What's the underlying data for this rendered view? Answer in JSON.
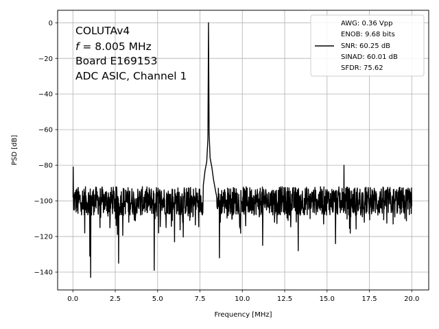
{
  "chart_data": {
    "type": "line",
    "xlabel": "Frequency [MHz]",
    "ylabel": "PSD [dB]",
    "xlim": [
      -0.9,
      21.0
    ],
    "ylim": [
      -150,
      7
    ],
    "xticks": [
      0.0,
      2.5,
      5.0,
      7.5,
      10.0,
      12.5,
      15.0,
      17.5,
      20.0
    ],
    "xtick_labels": [
      "0.0",
      "2.5",
      "5.0",
      "7.5",
      "10.0",
      "12.5",
      "15.0",
      "17.5",
      "20.0"
    ],
    "yticks": [
      0,
      -20,
      -40,
      -60,
      -80,
      -100,
      -120,
      -140
    ],
    "ytick_labels": [
      "0",
      "−20",
      "−40",
      "−60",
      "−80",
      "−100",
      "−120",
      "−140"
    ],
    "grid": true,
    "annotations": [
      {
        "text": "COLUTAv4"
      },
      {
        "text": "f = 8.005 MHz",
        "italic_prefix": "f",
        "rest": " = 8.005 MHz"
      },
      {
        "text": "Board E169153"
      },
      {
        "text": "ADC ASIC, Channel 1"
      }
    ],
    "legend": {
      "placement": "top-right",
      "entries": [
        "AWG: 0.36 Vpp",
        "ENOB: 9.68 bits",
        "SNR: 60.25 dB",
        "SINAD: 60.01 dB",
        "SFDR: 75.62"
      ]
    },
    "series": [
      {
        "color": "#000000",
        "noise_floor_db": -100,
        "points": [
          [
            0.0,
            -98
          ],
          [
            0.02,
            -81
          ],
          [
            0.05,
            -105
          ],
          [
            0.15,
            -96
          ],
          [
            0.3,
            -107
          ],
          [
            0.5,
            -101
          ],
          [
            0.7,
            -118
          ],
          [
            0.9,
            -104
          ],
          [
            1.0,
            -131
          ],
          [
            1.05,
            -143
          ],
          [
            1.1,
            -108
          ],
          [
            1.4,
            -95
          ],
          [
            1.6,
            -115
          ],
          [
            1.9,
            -102
          ],
          [
            2.2,
            -110
          ],
          [
            2.5,
            -99
          ],
          [
            2.7,
            -135
          ],
          [
            2.75,
            -108
          ],
          [
            3.0,
            -97
          ],
          [
            3.3,
            -112
          ],
          [
            3.6,
            -101
          ],
          [
            4.0,
            -108
          ],
          [
            4.3,
            -96
          ],
          [
            4.6,
            -104
          ],
          [
            4.8,
            -139
          ],
          [
            4.85,
            -110
          ],
          [
            5.2,
            -100
          ],
          [
            5.5,
            -115
          ],
          [
            5.8,
            -103
          ],
          [
            6.0,
            -123
          ],
          [
            6.3,
            -107
          ],
          [
            6.6,
            -98
          ],
          [
            6.9,
            -111
          ],
          [
            7.2,
            -102
          ],
          [
            7.5,
            -106
          ],
          [
            7.7,
            -91
          ],
          [
            7.8,
            -83
          ],
          [
            7.9,
            -78
          ],
          [
            7.97,
            -65
          ],
          [
            8.005,
            0
          ],
          [
            8.04,
            -62
          ],
          [
            8.1,
            -76
          ],
          [
            8.2,
            -81
          ],
          [
            8.3,
            -88
          ],
          [
            8.45,
            -96
          ],
          [
            8.6,
            -103
          ],
          [
            8.65,
            -132
          ],
          [
            8.7,
            -112
          ],
          [
            9.0,
            -97
          ],
          [
            9.4,
            -110
          ],
          [
            9.8,
            -101
          ],
          [
            10.2,
            -114
          ],
          [
            10.6,
            -99
          ],
          [
            11.0,
            -109
          ],
          [
            11.2,
            -125
          ],
          [
            11.5,
            -103
          ],
          [
            11.9,
            -112
          ],
          [
            12.3,
            -98
          ],
          [
            12.7,
            -111
          ],
          [
            13.1,
            -97
          ],
          [
            13.3,
            -128
          ],
          [
            13.6,
            -104
          ],
          [
            14.0,
            -110
          ],
          [
            14.4,
            -99
          ],
          [
            14.8,
            -113
          ],
          [
            15.2,
            -102
          ],
          [
            15.5,
            -124
          ],
          [
            15.6,
            -106
          ],
          [
            15.9,
            -100
          ],
          [
            16.0,
            -80
          ],
          [
            16.05,
            -104
          ],
          [
            16.4,
            -109
          ],
          [
            16.8,
            -99
          ],
          [
            17.2,
            -112
          ],
          [
            17.6,
            -101
          ],
          [
            18.0,
            -108
          ],
          [
            18.5,
            -98
          ],
          [
            18.9,
            -113
          ],
          [
            19.2,
            -102
          ],
          [
            19.6,
            -110
          ],
          [
            19.8,
            -99
          ],
          [
            20.0,
            -103
          ]
        ]
      }
    ]
  }
}
